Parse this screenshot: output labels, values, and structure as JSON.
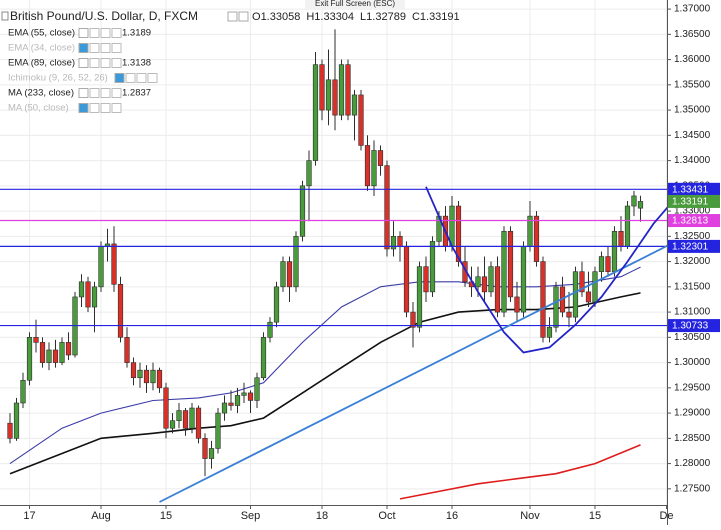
{
  "header": {
    "symbol": "British Pound/U.S. Dollar, D, FXCM",
    "ohlc_prefixes": [
      "O",
      "H",
      "L",
      "C"
    ]
  },
  "tooltip": "Exit Full Screen (ESC)",
  "chart_data": {
    "type": "candlestick",
    "xlim": [
      -1.54,
      101.08
    ],
    "xticks": [
      {
        "value": 3,
        "label": "17"
      },
      {
        "value": 14,
        "label": "Aug"
      },
      {
        "value": 24,
        "label": "15"
      },
      {
        "value": 37,
        "label": "Sep"
      },
      {
        "value": 48,
        "label": "18"
      },
      {
        "value": 58,
        "label": "Oct"
      },
      {
        "value": 68,
        "label": "16"
      },
      {
        "value": 80,
        "label": "Nov"
      },
      {
        "value": 90,
        "label": "15"
      },
      {
        "value": 101,
        "label": "De"
      }
    ],
    "ylim": [
      1.2718,
      1.3718
    ],
    "yticks": [
      {
        "value": 1.275,
        "label": "1.27500"
      },
      {
        "value": 1.28,
        "label": "1.28000"
      },
      {
        "value": 1.285,
        "label": "1.28500"
      },
      {
        "value": 1.29,
        "label": "1.29000"
      },
      {
        "value": 1.295,
        "label": "1.29500"
      },
      {
        "value": 1.3,
        "label": "1.30000"
      },
      {
        "value": 1.305,
        "label": "1.30500"
      },
      {
        "value": 1.31,
        "label": "1.31000"
      },
      {
        "value": 1.315,
        "label": "1.31500"
      },
      {
        "value": 1.32,
        "label": "1.32000"
      },
      {
        "value": 1.325,
        "label": "1.32500"
      },
      {
        "value": 1.33,
        "label": "1.33000"
      },
      {
        "value": 1.335,
        "label": "1.33500"
      },
      {
        "value": 1.34,
        "label": "1.34000"
      },
      {
        "value": 1.345,
        "label": "1.34500"
      },
      {
        "value": 1.35,
        "label": "1.35000"
      },
      {
        "value": 1.355,
        "label": "1.35500"
      },
      {
        "value": 1.36,
        "label": "1.36000"
      },
      {
        "value": 1.365,
        "label": "1.36500"
      },
      {
        "value": 1.37,
        "label": "1.37000"
      }
    ],
    "grid": true,
    "up_color": "#4a9b3c",
    "down_color": "#d8312a",
    "wick_color": "#2e2e2e",
    "open": [
      1.288,
      1.285,
      1.292,
      1.2965,
      1.305,
      1.304,
      1.3,
      1.3025,
      1.3,
      1.304,
      1.3015,
      1.313,
      1.316,
      1.311,
      1.315,
      1.323,
      1.3235,
      1.3155,
      1.305,
      1.3,
      1.297,
      1.2985,
      1.296,
      1.2985,
      1.295,
      1.287,
      1.2885,
      1.2905,
      1.287,
      1.291,
      1.285,
      1.281,
      1.283,
      1.29,
      1.292,
      1.2915,
      1.2935,
      1.294,
      1.2925,
      1.297,
      1.305,
      1.308,
      1.315,
      1.32,
      1.315,
      1.325,
      1.335,
      1.34,
      1.359,
      1.35,
      1.356,
      1.349,
      1.359,
      1.349,
      1.353,
      1.343,
      1.335,
      1.342,
      1.339,
      1.3225,
      1.325,
      1.323,
      1.31,
      1.307,
      1.319,
      1.314,
      1.324,
      1.329,
      1.323,
      1.331,
      1.32,
      1.316,
      1.315,
      1.317,
      1.314,
      1.319,
      1.31,
      1.326,
      1.313,
      1.31,
      1.323,
      1.329,
      1.32,
      1.305,
      1.307,
      1.315,
      1.31,
      1.309,
      1.318,
      1.314,
      1.312,
      1.318,
      1.321,
      1.318,
      1.326,
      1.323,
      1.331,
      1.33058
    ],
    "high": [
      1.29,
      1.293,
      1.298,
      1.306,
      1.3085,
      1.305,
      1.304,
      1.3045,
      1.305,
      1.306,
      1.314,
      1.3175,
      1.317,
      1.316,
      1.324,
      1.3265,
      1.327,
      1.317,
      1.307,
      1.301,
      1.3,
      1.2995,
      1.3,
      1.299,
      1.296,
      1.29,
      1.292,
      1.291,
      1.292,
      1.2915,
      1.286,
      1.2845,
      1.291,
      1.2935,
      1.2945,
      1.295,
      1.296,
      1.2945,
      1.298,
      1.306,
      1.309,
      1.316,
      1.321,
      1.321,
      1.326,
      1.336,
      1.342,
      1.3615,
      1.36,
      1.362,
      1.366,
      1.36,
      1.36,
      1.354,
      1.354,
      1.345,
      1.344,
      1.343,
      1.34,
      1.328,
      1.326,
      1.324,
      1.312,
      1.32,
      1.321,
      1.325,
      1.33,
      1.331,
      1.333,
      1.332,
      1.323,
      1.319,
      1.319,
      1.321,
      1.32,
      1.321,
      1.327,
      1.327,
      1.316,
      1.324,
      1.332,
      1.33,
      1.321,
      1.309,
      1.316,
      1.317,
      1.314,
      1.319,
      1.32,
      1.318,
      1.319,
      1.322,
      1.323,
      1.327,
      1.329,
      1.332,
      1.334,
      1.33304
    ],
    "low": [
      1.284,
      1.2845,
      1.291,
      1.2955,
      1.302,
      1.299,
      1.2985,
      1.299,
      1.2995,
      1.3005,
      1.301,
      1.311,
      1.31,
      1.306,
      1.314,
      1.32,
      1.314,
      1.304,
      1.299,
      1.2955,
      1.295,
      1.294,
      1.2945,
      1.294,
      1.285,
      1.286,
      1.287,
      1.2855,
      1.286,
      1.284,
      1.2775,
      1.279,
      1.282,
      1.2885,
      1.2905,
      1.29,
      1.292,
      1.29,
      1.291,
      1.2965,
      1.304,
      1.307,
      1.314,
      1.312,
      1.314,
      1.324,
      1.328,
      1.339,
      1.348,
      1.347,
      1.346,
      1.348,
      1.348,
      1.344,
      1.342,
      1.334,
      1.333,
      1.337,
      1.321,
      1.321,
      1.32,
      1.309,
      1.303,
      1.306,
      1.312,
      1.313,
      1.323,
      1.322,
      1.322,
      1.319,
      1.315,
      1.313,
      1.313,
      1.312,
      1.313,
      1.309,
      1.309,
      1.312,
      1.308,
      1.309,
      1.322,
      1.319,
      1.304,
      1.304,
      1.306,
      1.309,
      1.307,
      1.308,
      1.313,
      1.311,
      1.311,
      1.316,
      1.317,
      1.317,
      1.322,
      1.3225,
      1.329,
      1.32789
    ],
    "close": [
      1.285,
      1.292,
      1.2965,
      1.305,
      1.304,
      1.3,
      1.3025,
      1.3,
      1.304,
      1.3015,
      1.313,
      1.316,
      1.311,
      1.315,
      1.323,
      1.3235,
      1.3155,
      1.305,
      1.3,
      1.297,
      1.2985,
      1.296,
      1.2985,
      1.295,
      1.287,
      1.2885,
      1.2905,
      1.287,
      1.291,
      1.285,
      1.281,
      1.283,
      1.29,
      1.292,
      1.2915,
      1.2935,
      1.294,
      1.2925,
      1.297,
      1.305,
      1.308,
      1.315,
      1.32,
      1.315,
      1.325,
      1.335,
      1.34,
      1.359,
      1.35,
      1.356,
      1.349,
      1.359,
      1.349,
      1.353,
      1.343,
      1.335,
      1.342,
      1.339,
      1.3225,
      1.325,
      1.323,
      1.31,
      1.307,
      1.319,
      1.314,
      1.324,
      1.329,
      1.323,
      1.331,
      1.32,
      1.316,
      1.315,
      1.317,
      1.314,
      1.319,
      1.31,
      1.326,
      1.313,
      1.31,
      1.323,
      1.329,
      1.32,
      1.305,
      1.307,
      1.315,
      1.31,
      1.309,
      1.318,
      1.314,
      1.312,
      1.318,
      1.321,
      1.318,
      1.326,
      1.323,
      1.331,
      1.333,
      1.33191
    ],
    "current_price_color": "#4a9b3c",
    "indicators": [
      {
        "name": "EMA (55, close)",
        "color": "#3b3ba6",
        "visible": true,
        "x": [
          0,
          8,
          14,
          22,
          29,
          34,
          39,
          45,
          51,
          57,
          63,
          69,
          75,
          81,
          87,
          94,
          97
        ],
        "values": [
          1.28,
          1.287,
          1.29,
          1.2925,
          1.293,
          1.294,
          1.296,
          1.304,
          1.311,
          1.315,
          1.316,
          1.316,
          1.315,
          1.315,
          1.3155,
          1.317,
          1.3189
        ]
      },
      {
        "name": "EMA (34, close)",
        "visible": false
      },
      {
        "name": "EMA (89, close)",
        "color": "#111111",
        "visible": true,
        "x": [
          0,
          8,
          14,
          22,
          29,
          34,
          39,
          45,
          51,
          57,
          63,
          69,
          75,
          81,
          87,
          94,
          97
        ],
        "values": [
          1.278,
          1.282,
          1.285,
          1.286,
          1.287,
          1.2875,
          1.289,
          1.294,
          1.299,
          1.304,
          1.308,
          1.31,
          1.3105,
          1.3105,
          1.311,
          1.313,
          1.3138
        ]
      },
      {
        "name": "Ichimoku (9, 26, 52, 26)",
        "visible": false
      },
      {
        "name": "MA (233, close)",
        "color": "#e01b1b",
        "visible": true,
        "x": [
          60,
          66,
          72,
          78,
          84,
          90,
          97
        ],
        "values": [
          1.273,
          1.2745,
          1.276,
          1.277,
          1.278,
          1.28,
          1.2837
        ]
      },
      {
        "name": "MA (50, close)",
        "visible": false
      }
    ],
    "levels": [
      {
        "value": 1.33431,
        "color": "#2424e0"
      },
      {
        "value": 1.32813,
        "color": "#e040e0"
      },
      {
        "value": 1.32301,
        "color": "#2424e0"
      },
      {
        "value": 1.30733,
        "color": "#2424e0"
      }
    ],
    "drawings": [
      {
        "color": "#3b7fd6",
        "x": [
          23,
          102
        ],
        "values": [
          1.2724,
          1.3237
        ]
      },
      {
        "color": "#2424c8",
        "x": [
          64,
          68,
          72,
          76,
          79,
          83,
          87,
          91,
          95,
          99,
          102
        ],
        "values": [
          1.3348,
          1.323,
          1.314,
          1.306,
          1.302,
          1.303,
          1.3075,
          1.313,
          1.32,
          1.3275,
          1.332
        ]
      }
    ]
  }
}
